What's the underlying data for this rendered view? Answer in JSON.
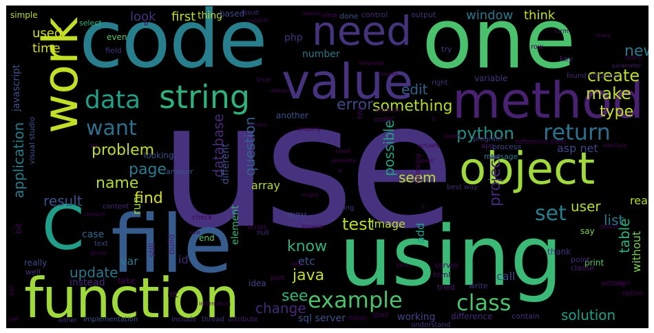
{
  "words": [
    {
      "text": "use",
      "color": "#46327e"
    },
    {
      "text": "code",
      "color": "#277f8e"
    },
    {
      "text": "one",
      "color": "#4ac16d"
    },
    {
      "text": "using",
      "color": "#3aba76"
    },
    {
      "text": "file",
      "color": "#365c8d"
    },
    {
      "text": "function",
      "color": "#a0da39"
    },
    {
      "text": "method",
      "color": "#482173"
    },
    {
      "text": "object",
      "color": "#a0da39"
    },
    {
      "text": "value",
      "color": "#46327e"
    },
    {
      "text": "need",
      "color": "#46337e"
    },
    {
      "text": "work",
      "color": "#c2df23"
    },
    {
      "text": "string",
      "color": "#2db27d"
    },
    {
      "text": "C",
      "color": "#1f9e89"
    },
    {
      "text": "data",
      "color": "#1fa187"
    },
    {
      "text": "example",
      "color": "#4ac16d"
    },
    {
      "text": "class",
      "color": "#4ac16d"
    },
    {
      "text": "want",
      "color": "#2d708e"
    },
    {
      "text": "return",
      "color": "#2d708e"
    },
    {
      "text": "set",
      "color": "#277f8e"
    },
    {
      "text": "problem",
      "color": "#bddf26"
    },
    {
      "text": "create",
      "color": "#bddf26"
    },
    {
      "text": "make",
      "color": "#c2df23"
    },
    {
      "text": "new",
      "color": "#287c8e"
    },
    {
      "text": "type",
      "color": "#cde11d"
    },
    {
      "text": "python",
      "color": "#21918c"
    },
    {
      "text": "application",
      "color": "#277f8e"
    },
    {
      "text": "database",
      "color": "#482878"
    },
    {
      "text": "question",
      "color": "#34618d"
    },
    {
      "text": "possible",
      "color": "#20a386"
    },
    {
      "text": "project",
      "color": "#482878"
    },
    {
      "text": "something",
      "color": "#b5de2b"
    },
    {
      "text": "error",
      "color": "#3f4889"
    },
    {
      "text": "edit",
      "color": "#34618d"
    },
    {
      "text": "result",
      "color": "#3b528b"
    },
    {
      "text": "find",
      "color": "#d8e219"
    },
    {
      "text": "page",
      "color": "#287c8e"
    },
    {
      "text": "name",
      "color": "#b5de2b"
    },
    {
      "text": "test",
      "color": "#b5de2b"
    },
    {
      "text": "know",
      "color": "#2db27d"
    },
    {
      "text": "java",
      "color": "#c2df23"
    },
    {
      "text": "see",
      "color": "#35b779"
    },
    {
      "text": "change",
      "color": "#482878"
    },
    {
      "text": "solution",
      "color": "#1fa187"
    },
    {
      "text": "update",
      "color": "#2a788e"
    },
    {
      "text": "list",
      "color": "#2a788e"
    },
    {
      "text": "user",
      "color": "#b5de2b"
    },
    {
      "text": "table",
      "color": "#2db27d"
    },
    {
      "text": "time",
      "color": "#d8e219"
    },
    {
      "text": "used",
      "color": "#d8e219"
    },
    {
      "text": "seem",
      "color": "#bddf26"
    },
    {
      "text": "look",
      "color": "#46337e"
    },
    {
      "text": "first",
      "color": "#bddf26"
    },
    {
      "text": "think",
      "color": "#c2df23"
    },
    {
      "text": "window",
      "color": "#2a788e"
    },
    {
      "text": "javascript",
      "color": "#3b528b"
    },
    {
      "text": "asp net",
      "color": "#3f4889"
    },
    {
      "text": "image",
      "color": "#bddf26"
    },
    {
      "text": "array",
      "color": "#b5de2b"
    },
    {
      "text": "run",
      "color": "#a0da39"
    },
    {
      "text": "add",
      "color": "#1f9e89"
    },
    {
      "text": "var",
      "color": "#2a788e"
    },
    {
      "text": "id",
      "color": "#482878"
    },
    {
      "text": "etc",
      "color": "#3b528b"
    },
    {
      "text": "way",
      "color": "#414487"
    },
    {
      "text": "call",
      "color": "#3f4889"
    },
    {
      "text": "read",
      "color": "#b5de2b"
    },
    {
      "text": "php",
      "color": "#46337e"
    },
    {
      "text": "number",
      "color": "#2a788e"
    },
    {
      "text": "case",
      "color": "#31688e"
    },
    {
      "text": "sql server",
      "color": "#3b528b"
    },
    {
      "text": "working",
      "color": "#414487"
    },
    {
      "text": "element",
      "color": "#35b779"
    },
    {
      "text": "simple",
      "color": "#bddf26"
    },
    {
      "text": "select",
      "color": "#35b779"
    },
    {
      "text": "thing",
      "color": "#b5de2b"
    },
    {
      "text": "based",
      "color": "#3e4989"
    },
    {
      "text": "issue",
      "color": "#482878"
    },
    {
      "text": "done",
      "color": "#3b528b"
    },
    {
      "text": "view",
      "color": "#440154"
    },
    {
      "text": "control",
      "color": "#482878"
    },
    {
      "text": "output",
      "color": "#472d7b"
    },
    {
      "text": "even",
      "color": "#5ec962"
    },
    {
      "text": "field",
      "color": "#46327e"
    },
    {
      "text": "try",
      "color": "#46327e"
    },
    {
      "text": "row",
      "color": "#440154"
    },
    {
      "text": "key",
      "color": "#481a6c"
    },
    {
      "text": "true",
      "color": "#440154"
    },
    {
      "text": "variable",
      "color": "#46327e"
    },
    {
      "text": "another",
      "color": "#3b528b"
    },
    {
      "text": "two",
      "color": "#440154"
    },
    {
      "text": "right",
      "color": "#472d7b"
    },
    {
      "text": "found instance",
      "color": "#482878"
    },
    {
      "text": "version",
      "color": "#440154"
    },
    {
      "text": "order",
      "color": "#440154"
    },
    {
      "text": "reference item",
      "color": "#440154"
    },
    {
      "text": "app",
      "color": "#481a6c"
    },
    {
      "text": "message",
      "color": "#2a788e"
    },
    {
      "text": "process",
      "color": "#3e4989"
    },
    {
      "text": "without",
      "color": "#7ad151"
    },
    {
      "text": "program",
      "color": "#46327e"
    },
    {
      "text": "best way",
      "color": "#482878"
    },
    {
      "text": "different",
      "color": "#3b528b"
    },
    {
      "text": "answer",
      "color": "#3b528b"
    },
    {
      "text": "looking",
      "color": "#3b528b"
    },
    {
      "text": "visual studio",
      "color": "#3b528b"
    },
    {
      "text": "bit",
      "color": "#440154"
    },
    {
      "text": "content",
      "color": "#482878"
    },
    {
      "text": "check",
      "color": "#440154"
    },
    {
      "text": "end",
      "color": "#5ec962"
    },
    {
      "text": "still",
      "color": "#481a6c"
    },
    {
      "text": "build",
      "color": "#481a6c"
    },
    {
      "text": "text",
      "color": "#414487"
    },
    {
      "text": "script",
      "color": "#440154"
    },
    {
      "text": "null",
      "color": "#482878"
    },
    {
      "text": "print",
      "color": "#5ec962"
    },
    {
      "text": "say",
      "color": "#7ad151"
    },
    {
      "text": "thank",
      "color": "#46327e"
    },
    {
      "text": "point",
      "color": "#482878"
    },
    {
      "text": "classe",
      "color": "#481a6c"
    },
    {
      "text": "setting",
      "color": "#440154"
    },
    {
      "text": "option",
      "color": "#440154"
    },
    {
      "text": "really",
      "color": "#3e4989"
    },
    {
      "text": "well",
      "color": "#46327e"
    },
    {
      "text": "instead",
      "color": "#482878"
    },
    {
      "text": "take",
      "color": "#440154"
    },
    {
      "text": "server",
      "color": "#440154"
    },
    {
      "text": "html",
      "color": "#440154"
    },
    {
      "text": "tried",
      "color": "#481a6c"
    },
    {
      "text": "write",
      "color": "#46327e"
    },
    {
      "text": "idea",
      "color": "#3e4989"
    },
    {
      "text": "part",
      "color": "#440154"
    },
    {
      "text": "int",
      "color": "#440154"
    },
    {
      "text": "start",
      "color": "#440154"
    },
    {
      "text": "difference",
      "color": "#482878"
    },
    {
      "text": "contain",
      "color": "#472d7b"
    },
    {
      "text": "mean",
      "color": "#440154"
    },
    {
      "text": "include",
      "color": "#46327e"
    },
    {
      "text": "thread",
      "color": "#472d7b"
    },
    {
      "text": "attribute",
      "color": "#481a6c"
    },
    {
      "text": "implementation",
      "color": "#3b528b"
    },
    {
      "text": "either",
      "color": "#46327e"
    },
    {
      "text": "understand",
      "color": "#46327e"
    },
    {
      "text": "following",
      "color": "#440154"
    },
    {
      "text": "trying",
      "color": "#46327e"
    },
    {
      "text": "form",
      "color": "#440154"
    },
    {
      "text": "query",
      "color": "#440154"
    },
    {
      "text": "parameter",
      "color": "#481a6c"
    },
    {
      "text": "always",
      "color": "#440154"
    },
    {
      "text": "column",
      "color": "#440154"
    },
    {
      "text": "reason",
      "color": "#440154"
    },
    {
      "text": "support",
      "color": "#440154"
    },
    {
      "text": "jquery",
      "color": "#440154"
    },
    {
      "text": "language",
      "color": "#440154"
    },
    {
      "text": "access",
      "color": "#440154"
    },
    {
      "text": "properly",
      "color": "#440154"
    },
    {
      "text": "given",
      "color": "#440154"
    },
    {
      "text": "might",
      "color": "#440154"
    },
    {
      "text": "browser",
      "color": "#440154"
    },
    {
      "text": "link",
      "color": "#440154"
    },
    {
      "text": "size",
      "color": "#440154"
    },
    {
      "text": "going",
      "color": "#440154"
    },
    {
      "text": "default",
      "color": "#440154"
    },
    {
      "text": "interface",
      "color": "#440154"
    },
    {
      "text": "client",
      "color": "#440154"
    },
    {
      "text": "many",
      "color": "#440154"
    },
    {
      "text": "back",
      "color": "#440154"
    },
    {
      "text": "loop",
      "color": "#440154"
    },
    {
      "text": "information",
      "color": "#440154"
    },
    {
      "text": "connect",
      "color": "#440154"
    },
    {
      "text": "generate",
      "color": "#440154"
    },
    {
      "text": "actually",
      "color": "#440154"
    },
    {
      "text": "event",
      "color": "#440154"
    },
    {
      "text": "god",
      "color": "#440154"
    },
    {
      "text": "pwi",
      "color": "#440154"
    },
    {
      "text": "b",
      "color": "#440154"
    },
    {
      "text": "s",
      "color": "#440154"
    },
    {
      "text": "v",
      "color": "#440154"
    },
    {
      "text": "r",
      "color": "#440154"
    }
  ]
}
